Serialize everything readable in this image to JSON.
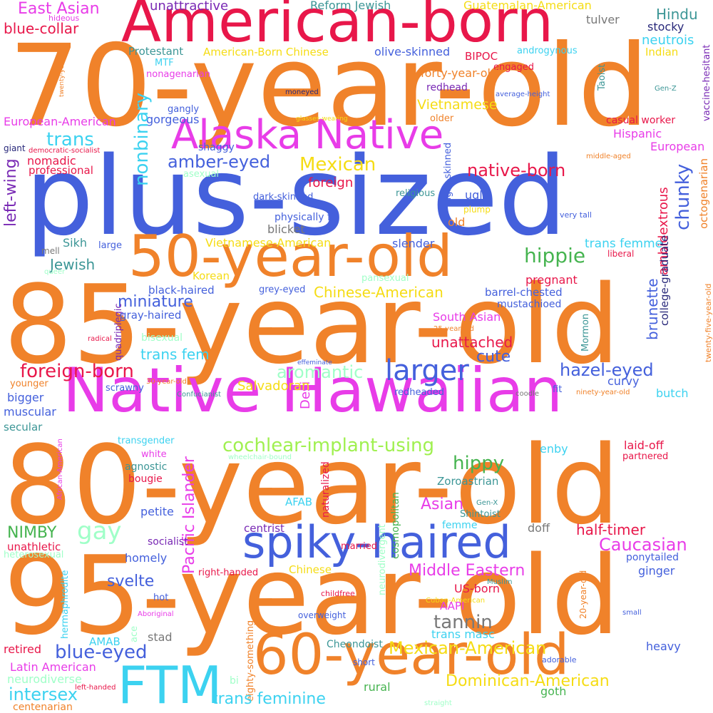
{
  "palette": {
    "orange": "#f0822a",
    "crimson": "#e8174a",
    "magenta": "#e83ce8",
    "royal_blue": "#4460dc",
    "cyan": "#3cd2f0",
    "yellow": "#f5dc14",
    "green": "#46b450",
    "mint": "#a0ffc8",
    "teal": "#3c9696",
    "navy": "#28287a",
    "purple": "#7828b4",
    "gray": "#787878"
  },
  "words": [
    {
      "id": "70-year-old",
      "text": "70-year-old",
      "color": "#f0822a"
    },
    {
      "id": "american-born",
      "text": "American-born",
      "color": "#e8174a"
    },
    {
      "id": "alaska-native",
      "text": "Alaska Native",
      "color": "#e83ce8"
    },
    {
      "id": "plus-sized",
      "text": "plus-sized",
      "color": "#4460dc"
    },
    {
      "id": "50-year-old",
      "text": "50-year-old",
      "color": "#f0822a"
    },
    {
      "id": "85-year-old",
      "text": "85-year-old",
      "color": "#f0822a"
    },
    {
      "id": "native-hawaiian",
      "text": "Native Hawaiian",
      "color": "#e83ce8"
    },
    {
      "id": "80-year-old",
      "text": "80-year-old",
      "color": "#f0822a"
    },
    {
      "id": "spiky-haired",
      "text": "spiky-haired",
      "color": "#4460dc"
    },
    {
      "id": "95-year-old",
      "text": "95-year-old",
      "color": "#f0822a"
    },
    {
      "id": "60-year-old",
      "text": "60-year-old",
      "color": "#f0822a"
    },
    {
      "id": "ftm",
      "text": "FTM",
      "color": "#3cd2f0"
    },
    {
      "id": "larger",
      "text": "larger",
      "color": "#4460dc"
    },
    {
      "id": "east-asian",
      "text": "East Asian",
      "color": "#e83ce8"
    },
    {
      "id": "hideous",
      "text": "hideous",
      "color": "#e83ce8"
    },
    {
      "id": "unattractive",
      "text": "unattractive",
      "color": "#7828b4"
    },
    {
      "id": "reform-jewish",
      "text": "Reform Jewish",
      "color": "#3c9696"
    },
    {
      "id": "guatemalan-american",
      "text": "Guatemalan-American",
      "color": "#f5dc14"
    },
    {
      "id": "tulver",
      "text": "tulver",
      "color": "#787878"
    },
    {
      "id": "hindu",
      "text": "Hindu",
      "color": "#3c9696"
    },
    {
      "id": "stocky",
      "text": "stocky",
      "color": "#28287a"
    },
    {
      "id": "blue-collar",
      "text": "blue-collar",
      "color": "#e8174a"
    },
    {
      "id": "neutrois",
      "text": "neutrois",
      "color": "#3cd2f0"
    },
    {
      "id": "protestant",
      "text": "Protestant",
      "color": "#3c9696"
    },
    {
      "id": "american-born-chinese",
      "text": "American-Born Chinese",
      "color": "#f5dc14"
    },
    {
      "id": "olive-skinned",
      "text": "olive-skinned",
      "color": "#4460dc"
    },
    {
      "id": "androgynous",
      "text": "androgynous",
      "color": "#3cd2f0"
    },
    {
      "id": "indian",
      "text": "Indian",
      "color": "#f5dc14"
    },
    {
      "id": "bipoc",
      "text": "BIPOC",
      "color": "#e8174a"
    },
    {
      "id": "engaged",
      "text": "engaged",
      "color": "#e8174a"
    },
    {
      "id": "mtf",
      "text": "MTF",
      "color": "#3cd2f0"
    },
    {
      "id": "nonagenarian",
      "text": "nonagenarian",
      "color": "#e83ce8"
    },
    {
      "id": "forty-year-old",
      "text": "forty-year-old",
      "color": "#f0822a"
    },
    {
      "id": "taoist",
      "text": "Taoist",
      "color": "#3c9696"
    },
    {
      "id": "gen-z",
      "text": "Gen-Z",
      "color": "#3c9696"
    },
    {
      "id": "vaccine-hesitant",
      "text": "vaccine-hesitant",
      "color": "#7828b4"
    },
    {
      "id": "twenty-year-old",
      "text": "twenty-year-old",
      "color": "#f0822a"
    },
    {
      "id": "redhead",
      "text": "redhead",
      "color": "#7828b4"
    },
    {
      "id": "average-height",
      "text": "average-height",
      "color": "#4460dc"
    },
    {
      "id": "moneyed",
      "text": "moneyed",
      "color": "#28287a"
    },
    {
      "id": "vietnamese",
      "text": "Vietnamese",
      "color": "#f5dc14"
    },
    {
      "id": "european-american",
      "text": "European-American",
      "color": "#e83ce8"
    },
    {
      "id": "gangly",
      "text": "gangly",
      "color": "#4460dc"
    },
    {
      "id": "gorgeous",
      "text": "gorgeous",
      "color": "#4460dc"
    },
    {
      "id": "glasses-wearing",
      "text": "glasses-wearing",
      "color": "#f5dc14"
    },
    {
      "id": "older",
      "text": "older",
      "color": "#f0822a"
    },
    {
      "id": "casual-worker",
      "text": "casual worker",
      "color": "#e8174a"
    },
    {
      "id": "trans",
      "text": "trans",
      "color": "#3cd2f0"
    },
    {
      "id": "hispanic",
      "text": "Hispanic",
      "color": "#e83ce8"
    },
    {
      "id": "giant",
      "text": "giant",
      "color": "#28287a"
    },
    {
      "id": "democratic-socialist",
      "text": "democratic-socialist",
      "color": "#e8174a"
    },
    {
      "id": "european",
      "text": "European",
      "color": "#e83ce8"
    },
    {
      "id": "amber-eyed",
      "text": "amber-eyed",
      "color": "#4460dc"
    },
    {
      "id": "nonbinary",
      "text": "nonbinary",
      "color": "#3cd2f0"
    },
    {
      "id": "mexican",
      "text": "Mexican",
      "color": "#f5dc14"
    },
    {
      "id": "middle-aged",
      "text": "middle-aged",
      "color": "#f0822a"
    },
    {
      "id": "shaggy",
      "text": "shaggy",
      "color": "#4460dc"
    },
    {
      "id": "left-wing",
      "text": "left-wing",
      "color": "#7828b4"
    },
    {
      "id": "nomadic",
      "text": "nomadic",
      "color": "#e8174a"
    },
    {
      "id": "professional",
      "text": "professional",
      "color": "#e8174a"
    },
    {
      "id": "asexual",
      "text": "asexual",
      "color": "#a0ffc8"
    },
    {
      "id": "native-born",
      "text": "native-born",
      "color": "#e8174a"
    },
    {
      "id": "foreign",
      "text": "foreign",
      "color": "#e8174a"
    },
    {
      "id": "chunky",
      "text": "chunky",
      "color": "#4460dc"
    },
    {
      "id": "octogenarian",
      "text": "octogenarian",
      "color": "#f0822a"
    },
    {
      "id": "light-skinned",
      "text": "light-skinned",
      "color": "#4460dc"
    },
    {
      "id": "religious",
      "text": "religious",
      "color": "#3c9696"
    },
    {
      "id": "dark-skinned",
      "text": "dark-skinned",
      "color": "#4460dc"
    },
    {
      "id": "ugly",
      "text": "ugly",
      "color": "#4460dc"
    },
    {
      "id": "plump",
      "text": "plump",
      "color": "#f5dc14"
    },
    {
      "id": "very-tall",
      "text": "very tall",
      "color": "#4460dc"
    },
    {
      "id": "physically-fit",
      "text": "physically fit",
      "color": "#4460dc"
    },
    {
      "id": "old",
      "text": "old",
      "color": "#f0822a"
    },
    {
      "id": "blicket",
      "text": "blicket",
      "color": "#787878"
    },
    {
      "id": "ambidextrous",
      "text": "ambidextrous",
      "color": "#e8174a"
    },
    {
      "id": "mell",
      "text": "mell",
      "color": "#787878"
    },
    {
      "id": "sikh",
      "text": "Sikh",
      "color": "#3c9696"
    },
    {
      "id": "large",
      "text": "large",
      "color": "#4460dc"
    },
    {
      "id": "vietnamese-american",
      "text": "Vietnamese-American",
      "color": "#f5dc14"
    },
    {
      "id": "slender",
      "text": "slender",
      "color": "#4460dc"
    },
    {
      "id": "hippie",
      "text": "hippie",
      "color": "#46b450"
    },
    {
      "id": "trans-femme",
      "text": "trans femme",
      "color": "#3cd2f0"
    },
    {
      "id": "liberal",
      "text": "liberal",
      "color": "#e8174a"
    },
    {
      "id": "jewish",
      "text": "Jewish",
      "color": "#3c9696"
    },
    {
      "id": "queer",
      "text": "queer",
      "color": "#a0ffc8"
    },
    {
      "id": "pansexual",
      "text": "pansexual",
      "color": "#a0ffc8"
    },
    {
      "id": "korean",
      "text": "Korean",
      "color": "#f5dc14"
    },
    {
      "id": "college-graduate",
      "text": "college-graduate",
      "color": "#28287a"
    },
    {
      "id": "pregnant",
      "text": "pregnant",
      "color": "#e8174a"
    },
    {
      "id": "black-haired",
      "text": "black-haired",
      "color": "#4460dc"
    },
    {
      "id": "grey-eyed",
      "text": "grey-eyed",
      "color": "#4460dc"
    },
    {
      "id": "chinese-american",
      "text": "Chinese-American",
      "color": "#f5dc14"
    },
    {
      "id": "barrel-chested",
      "text": "barrel-chested",
      "color": "#4460dc"
    },
    {
      "id": "brunette",
      "text": "brunette",
      "color": "#4460dc"
    },
    {
      "id": "twenty-five-year-old",
      "text": "twenty-five-year-old",
      "color": "#f0822a"
    },
    {
      "id": "miniature",
      "text": "miniature",
      "color": "#4460dc"
    },
    {
      "id": "mustachioed",
      "text": "mustachioed",
      "color": "#4460dc"
    },
    {
      "id": "quadriplegic",
      "text": "quadriplegic",
      "color": "#7828b4"
    },
    {
      "id": "gray-haired",
      "text": "gray-haired",
      "color": "#4460dc"
    },
    {
      "id": "south-asian",
      "text": "South Asian",
      "color": "#e83ce8"
    },
    {
      "id": "mormon",
      "text": "Mormon",
      "color": "#3c9696"
    },
    {
      "id": "25-year-old",
      "text": "25-year-old",
      "color": "#f0822a"
    },
    {
      "id": "radical",
      "text": "radical",
      "color": "#e8174a"
    },
    {
      "id": "bisexual",
      "text": "bisexual",
      "color": "#a0ffc8"
    },
    {
      "id": "unattached",
      "text": "unattached",
      "color": "#e8174a"
    },
    {
      "id": "trans-fem",
      "text": "trans fem",
      "color": "#3cd2f0"
    },
    {
      "id": "cute",
      "text": "cute",
      "color": "#4460dc"
    },
    {
      "id": "effeminate",
      "text": "effeminate",
      "color": "#4460dc"
    },
    {
      "id": "hazel-eyed",
      "text": "hazel-eyed",
      "color": "#4460dc"
    },
    {
      "id": "foreign-born",
      "text": "foreign-born",
      "color": "#e8174a"
    },
    {
      "id": "aromantic",
      "text": "aromantic",
      "color": "#a0ffc8"
    },
    {
      "id": "desi",
      "text": "Desi",
      "color": "#e83ce8"
    },
    {
      "id": "curvy",
      "text": "curvy",
      "color": "#4460dc"
    },
    {
      "id": "younger",
      "text": "younger",
      "color": "#f0822a"
    },
    {
      "id": "30-year-old",
      "text": "30-year-old",
      "color": "#f0822a"
    },
    {
      "id": "salvadoran",
      "text": "Salvadoran",
      "color": "#f5dc14"
    },
    {
      "id": "fit",
      "text": "fit",
      "color": "#4460dc"
    },
    {
      "id": "bigger",
      "text": "bigger",
      "color": "#4460dc"
    },
    {
      "id": "scrawny",
      "text": "scrawny",
      "color": "#4460dc"
    },
    {
      "id": "confucianist",
      "text": "Confucianist",
      "color": "#3c9696"
    },
    {
      "id": "redheaded",
      "text": "redheaded",
      "color": "#4460dc"
    },
    {
      "id": "coodle",
      "text": "coodle",
      "color": "#787878"
    },
    {
      "id": "ninety-year-old",
      "text": "ninety-year-old",
      "color": "#f0822a"
    },
    {
      "id": "butch",
      "text": "butch",
      "color": "#3cd2f0"
    },
    {
      "id": "muscular",
      "text": "muscular",
      "color": "#4460dc"
    },
    {
      "id": "secular",
      "text": "secular",
      "color": "#3c9696"
    },
    {
      "id": "transgender",
      "text": "transgender",
      "color": "#3cd2f0"
    },
    {
      "id": "cochlear-implant-using",
      "text": "cochlear-implant-using",
      "color": "#a0f050"
    },
    {
      "id": "enby",
      "text": "enby",
      "color": "#3cd2f0"
    },
    {
      "id": "laid-off",
      "text": "laid-off",
      "color": "#e8174a"
    },
    {
      "id": "partnered",
      "text": "partnered",
      "color": "#e8174a"
    },
    {
      "id": "white",
      "text": "white",
      "color": "#e83ce8"
    },
    {
      "id": "wheelchair-bound",
      "text": "wheelchair-bound",
      "color": "#a0ffc8"
    },
    {
      "id": "pacific-islander",
      "text": "Pacific Islander",
      "color": "#e83ce8"
    },
    {
      "id": "agnostic",
      "text": "agnostic",
      "color": "#3c9696"
    },
    {
      "id": "hippy",
      "text": "hippy",
      "color": "#46b450"
    },
    {
      "id": "bougie",
      "text": "bougie",
      "color": "#e8174a"
    },
    {
      "id": "african-american",
      "text": "African-American",
      "color": "#e83ce8"
    },
    {
      "id": "naturalized",
      "text": "naturalized",
      "color": "#e8174a"
    },
    {
      "id": "zoroastrian",
      "text": "Zoroastrian",
      "color": "#3c9696"
    },
    {
      "id": "petite",
      "text": "petite",
      "color": "#4460dc"
    },
    {
      "id": "afab",
      "text": "AFAB",
      "color": "#3cd2f0"
    },
    {
      "id": "asian",
      "text": "Asian",
      "color": "#e83ce8"
    },
    {
      "id": "gen-x",
      "text": "Gen-X",
      "color": "#3c9696"
    },
    {
      "id": "shintoist",
      "text": "Shintoist",
      "color": "#3c9696"
    },
    {
      "id": "gay",
      "text": "gay",
      "color": "#a0ffc8"
    },
    {
      "id": "nimby",
      "text": "NIMBY",
      "color": "#46b450"
    },
    {
      "id": "centrist",
      "text": "centrist",
      "color": "#7828b4"
    },
    {
      "id": "femme",
      "text": "femme",
      "color": "#3cd2f0"
    },
    {
      "id": "cosmopolitan",
      "text": "cosmopolitan",
      "color": "#46b450"
    },
    {
      "id": "half-timer",
      "text": "half-timer",
      "color": "#e8174a"
    },
    {
      "id": "unathletic",
      "text": "unathletic",
      "color": "#e8174a"
    },
    {
      "id": "socialist",
      "text": "socialist",
      "color": "#7828b4"
    },
    {
      "id": "married",
      "text": "married",
      "color": "#e8174a"
    },
    {
      "id": "doff",
      "text": "doff",
      "color": "#787878"
    },
    {
      "id": "caucasian",
      "text": "Caucasian",
      "color": "#e83ce8"
    },
    {
      "id": "heterosexual",
      "text": "heterosexual",
      "color": "#a0ffc8"
    },
    {
      "id": "homely",
      "text": "homely",
      "color": "#4460dc"
    },
    {
      "id": "ponytailed",
      "text": "ponytailed",
      "color": "#4460dc"
    },
    {
      "id": "svelte",
      "text": "svelte",
      "color": "#4460dc"
    },
    {
      "id": "right-handed",
      "text": "right-handed",
      "color": "#e8174a"
    },
    {
      "id": "chinese",
      "text": "Chinese",
      "color": "#f5dc14"
    },
    {
      "id": "middle-eastern",
      "text": "Middle Eastern",
      "color": "#e83ce8"
    },
    {
      "id": "ginger",
      "text": "ginger",
      "color": "#4460dc"
    },
    {
      "id": "neurodivergent",
      "text": "neurodivergent",
      "color": "#a0ffc8"
    },
    {
      "id": "muslim",
      "text": "Muslim",
      "color": "#3c9696"
    },
    {
      "id": "hermaphrodite",
      "text": "hermaphrodite",
      "color": "#3cd2f0"
    },
    {
      "id": "hot",
      "text": "hot",
      "color": "#4460dc"
    },
    {
      "id": "childfree",
      "text": "childfree",
      "color": "#e8174a"
    },
    {
      "id": "us-born",
      "text": "US-born",
      "color": "#e8174a"
    },
    {
      "id": "20-year-old",
      "text": "20-year-old",
      "color": "#f0822a"
    },
    {
      "id": "aboriginal",
      "text": "Aboriginal",
      "color": "#e83ce8"
    },
    {
      "id": "cuban-american",
      "text": "Cuban-American",
      "color": "#f5dc14"
    },
    {
      "id": "aapi",
      "text": "AAPI",
      "color": "#e83ce8"
    },
    {
      "id": "small",
      "text": "small",
      "color": "#4460dc"
    },
    {
      "id": "overweight",
      "text": "overweight",
      "color": "#4460dc"
    },
    {
      "id": "tannin",
      "text": "tannin",
      "color": "#787878"
    },
    {
      "id": "trans-masc",
      "text": "trans masc",
      "color": "#3cd2f0"
    },
    {
      "id": "ace",
      "text": "ace",
      "color": "#a0ffc8"
    },
    {
      "id": "eighty-something",
      "text": "eighty-something",
      "color": "#f0822a"
    },
    {
      "id": "stad",
      "text": "stad",
      "color": "#787878"
    },
    {
      "id": "cheondoist",
      "text": "Cheondoist",
      "color": "#3c9696"
    },
    {
      "id": "amab",
      "text": "AMAB",
      "color": "#3cd2f0"
    },
    {
      "id": "retired",
      "text": "retired",
      "color": "#e8174a"
    },
    {
      "id": "blue-eyed",
      "text": "blue-eyed",
      "color": "#4460dc"
    },
    {
      "id": "mexican-american",
      "text": "Mexican-American",
      "color": "#f5dc14"
    },
    {
      "id": "heavy",
      "text": "heavy",
      "color": "#4460dc"
    },
    {
      "id": "latin-american",
      "text": "Latin American",
      "color": "#e83ce8"
    },
    {
      "id": "short",
      "text": "short",
      "color": "#4460dc"
    },
    {
      "id": "adorable",
      "text": "adorable",
      "color": "#4460dc"
    },
    {
      "id": "neurodiverse",
      "text": "neurodiverse",
      "color": "#a0ffc8"
    },
    {
      "id": "bi",
      "text": "bi",
      "color": "#a0ffc8"
    },
    {
      "id": "dominican-american",
      "text": "Dominican-American",
      "color": "#f5dc14"
    },
    {
      "id": "intersex",
      "text": "intersex",
      "color": "#3cd2f0"
    },
    {
      "id": "rural",
      "text": "rural",
      "color": "#46b450"
    },
    {
      "id": "goth",
      "text": "goth",
      "color": "#46b450"
    },
    {
      "id": "left-handed",
      "text": "left-handed",
      "color": "#e8174a"
    },
    {
      "id": "trans-feminine",
      "text": "trans feminine",
      "color": "#3cd2f0"
    },
    {
      "id": "straight",
      "text": "straight",
      "color": "#a0ffc8"
    },
    {
      "id": "centenarian",
      "text": "centenarian",
      "color": "#f0822a"
    }
  ]
}
